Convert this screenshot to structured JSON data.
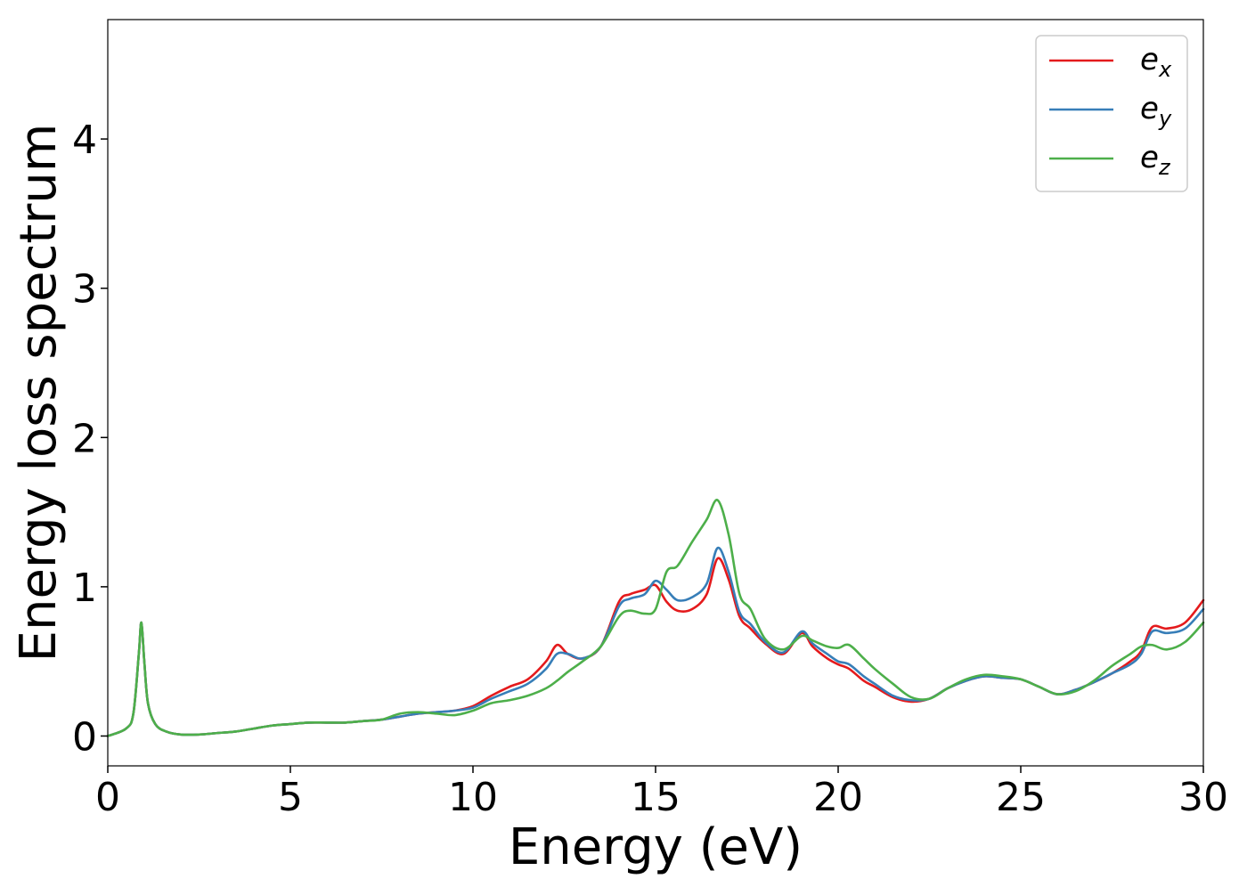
{
  "chart_data": {
    "type": "line",
    "title": "",
    "xlabel": "Energy (eV)",
    "ylabel": "Energy loss spectrum",
    "xlim": [
      0,
      30
    ],
    "ylim": [
      -0.2,
      4.8
    ],
    "xticks": [
      0,
      5,
      10,
      15,
      20,
      25,
      30
    ],
    "yticks": [
      0,
      1,
      2,
      3,
      4
    ],
    "grid": false,
    "legend_position": "top-right",
    "x": [
      0,
      0.5,
      0.7,
      0.85,
      0.92,
      1.0,
      1.1,
      1.3,
      1.6,
      2,
      2.5,
      3,
      3.5,
      4,
      4.5,
      5,
      5.5,
      6,
      6.5,
      7,
      7.5,
      8,
      8.5,
      9,
      9.5,
      10,
      10.5,
      11,
      11.5,
      12,
      12.3,
      12.6,
      13,
      13.5,
      14,
      14.3,
      14.7,
      15,
      15.3,
      15.6,
      16,
      16.4,
      16.7,
      17,
      17.3,
      17.6,
      18,
      18.5,
      19,
      19.3,
      19.7,
      20,
      20.3,
      20.7,
      21,
      21.5,
      22,
      22.5,
      23,
      23.5,
      24,
      24.5,
      25,
      25.5,
      26,
      26.5,
      27,
      27.5,
      28,
      28.3,
      28.6,
      29,
      29.5,
      30
    ],
    "series": [
      {
        "name": "e_x",
        "label_base": "e",
        "label_sub": "x",
        "color": "#e41a1c",
        "values": [
          0,
          0.05,
          0.15,
          0.55,
          0.76,
          0.5,
          0.22,
          0.08,
          0.03,
          0.01,
          0.01,
          0.02,
          0.03,
          0.05,
          0.07,
          0.08,
          0.09,
          0.09,
          0.09,
          0.1,
          0.11,
          0.13,
          0.15,
          0.16,
          0.17,
          0.2,
          0.27,
          0.33,
          0.38,
          0.5,
          0.61,
          0.55,
          0.52,
          0.6,
          0.9,
          0.95,
          0.98,
          1.01,
          0.9,
          0.84,
          0.85,
          0.95,
          1.19,
          1.05,
          0.8,
          0.72,
          0.62,
          0.55,
          0.69,
          0.6,
          0.52,
          0.48,
          0.45,
          0.37,
          0.33,
          0.26,
          0.23,
          0.25,
          0.32,
          0.37,
          0.4,
          0.39,
          0.38,
          0.33,
          0.28,
          0.31,
          0.36,
          0.42,
          0.5,
          0.57,
          0.73,
          0.72,
          0.76,
          0.91
        ]
      },
      {
        "name": "e_y",
        "label_base": "e",
        "label_sub": "y",
        "color": "#377eb8",
        "values": [
          0,
          0.05,
          0.15,
          0.55,
          0.76,
          0.5,
          0.22,
          0.08,
          0.03,
          0.01,
          0.01,
          0.02,
          0.03,
          0.05,
          0.07,
          0.08,
          0.09,
          0.09,
          0.09,
          0.1,
          0.11,
          0.13,
          0.15,
          0.16,
          0.17,
          0.19,
          0.25,
          0.3,
          0.35,
          0.45,
          0.55,
          0.55,
          0.52,
          0.6,
          0.87,
          0.92,
          0.95,
          1.04,
          0.98,
          0.91,
          0.93,
          1.02,
          1.26,
          1.1,
          0.83,
          0.75,
          0.63,
          0.56,
          0.7,
          0.62,
          0.55,
          0.5,
          0.48,
          0.4,
          0.35,
          0.27,
          0.24,
          0.25,
          0.32,
          0.37,
          0.4,
          0.39,
          0.38,
          0.33,
          0.28,
          0.31,
          0.36,
          0.42,
          0.48,
          0.55,
          0.7,
          0.69,
          0.72,
          0.85
        ]
      },
      {
        "name": "e_z",
        "label_base": "e",
        "label_sub": "z",
        "color": "#4daf4a",
        "values": [
          0,
          0.05,
          0.15,
          0.55,
          0.76,
          0.5,
          0.22,
          0.08,
          0.03,
          0.01,
          0.01,
          0.02,
          0.03,
          0.05,
          0.07,
          0.08,
          0.09,
          0.09,
          0.09,
          0.1,
          0.11,
          0.15,
          0.16,
          0.15,
          0.14,
          0.17,
          0.22,
          0.24,
          0.27,
          0.32,
          0.37,
          0.43,
          0.5,
          0.6,
          0.8,
          0.84,
          0.82,
          0.85,
          1.1,
          1.14,
          1.3,
          1.45,
          1.58,
          1.35,
          0.95,
          0.85,
          0.65,
          0.58,
          0.67,
          0.64,
          0.6,
          0.59,
          0.61,
          0.52,
          0.45,
          0.35,
          0.26,
          0.25,
          0.32,
          0.38,
          0.41,
          0.4,
          0.38,
          0.33,
          0.28,
          0.3,
          0.37,
          0.47,
          0.55,
          0.6,
          0.61,
          0.58,
          0.63,
          0.76
        ]
      }
    ]
  }
}
